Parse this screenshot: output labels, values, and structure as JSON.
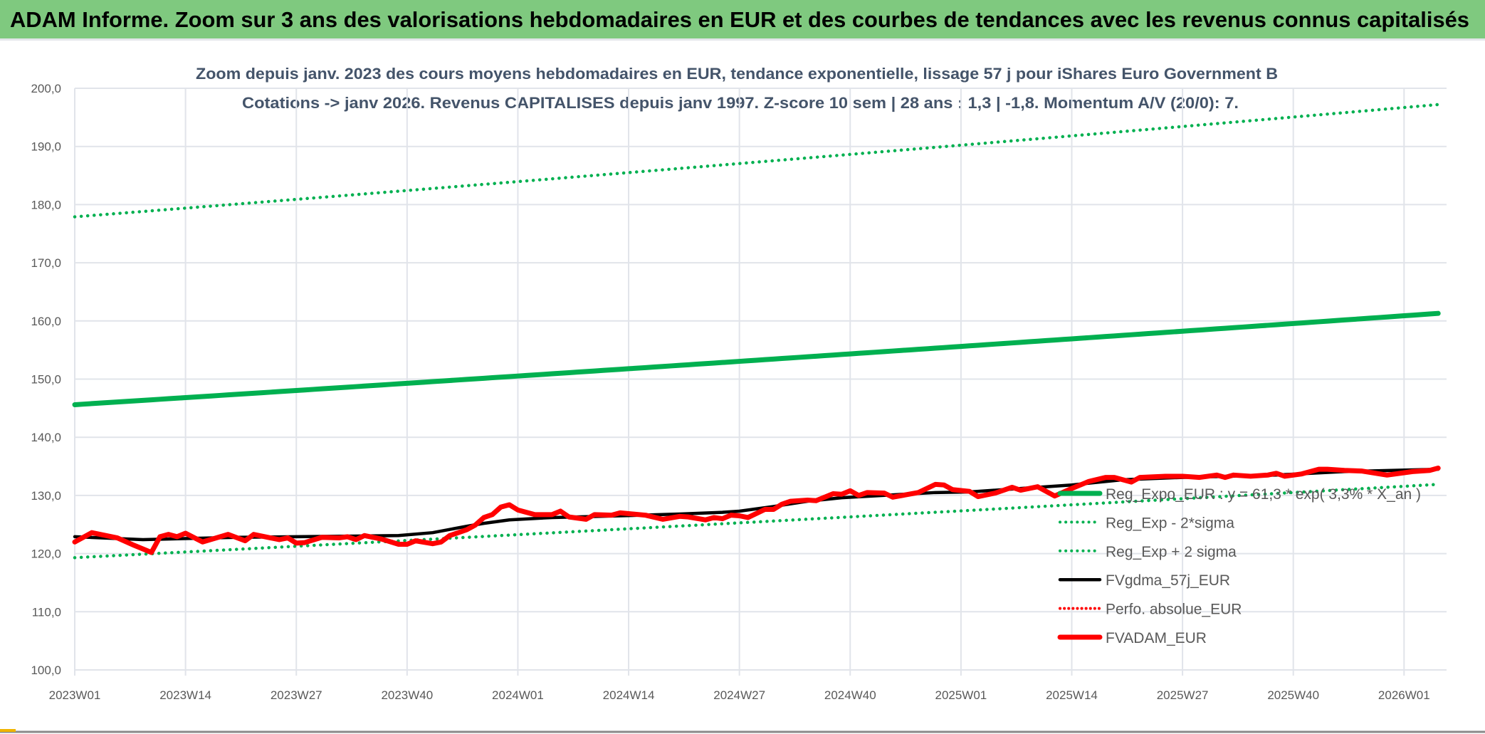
{
  "banner": {
    "title": "ADAM Informe. Zoom sur 3 ans des valorisations hebdomadaires en EUR et des courbes de tendances avec les revenus connus capitalisés"
  },
  "chart_data": {
    "type": "line",
    "title": "Zoom depuis janv. 2023 des cours moyens hebdomadaires en EUR, tendance exponentielle, lissage 57 j pour iShares Euro Government B",
    "subtitle": "Cotations -> janv 2026. Revenus CAPITALISES depuis janv 1997. Z-score 10 sem | 28 ans : 1,3 | -1,8. Momentum A/V (20/0): 7.",
    "xlabel": "",
    "ylabel": "",
    "ylim": [
      100,
      200
    ],
    "y_ticks": [
      "100,0",
      "110,0",
      "120,0",
      "130,0",
      "140,0",
      "150,0",
      "160,0",
      "170,0",
      "180,0",
      "190,0",
      "200,0"
    ],
    "x_ticks": [
      "2023W01",
      "2023W14",
      "2023W27",
      "2023W40",
      "2024W01",
      "2024W14",
      "2024W27",
      "2024W40",
      "2025W01",
      "2025W14",
      "2025W27",
      "2025W40",
      "2026W01"
    ],
    "grid": true,
    "legend_position": "bottom-right",
    "series": [
      {
        "name": "Reg_Expo_EUR : y = 61,3 * exp( 3,3% * X_an )",
        "color": "#00b050",
        "style": "solid-thick",
        "curve": "exponential",
        "points": [
          [
            "2023W01",
            145.6
          ],
          [
            "2026W05",
            161.3
          ]
        ]
      },
      {
        "name": "Reg_Exp - 2*sigma",
        "color": "#00b050",
        "style": "dotted",
        "curve": "exponential",
        "points": [
          [
            "2023W01",
            119.3
          ],
          [
            "2026W05",
            131.9
          ]
        ]
      },
      {
        "name": "Reg_Exp + 2 sigma",
        "color": "#00b050",
        "style": "dotted",
        "curve": "exponential",
        "points": [
          [
            "2023W01",
            177.9
          ],
          [
            "2026W05",
            197.2
          ]
        ]
      },
      {
        "name": "FVgdma_57j_EUR",
        "color": "#000000",
        "style": "solid",
        "points": [
          [
            "2023W01",
            122.9
          ],
          [
            "2023W09",
            122.4
          ],
          [
            "2023W20",
            122.8
          ],
          [
            "2023W39",
            123.1
          ],
          [
            "2023W43",
            123.6
          ],
          [
            "2023W47",
            124.7
          ],
          [
            "2023W49",
            125.2
          ],
          [
            "2023W52",
            125.8
          ],
          [
            "2024W05",
            126.2
          ],
          [
            "2024W13",
            126.5
          ],
          [
            "2024W20",
            126.8
          ],
          [
            "2024W25",
            127.1
          ],
          [
            "2024W27",
            127.3
          ],
          [
            "2024W31",
            128.1
          ],
          [
            "2024W35",
            129.0
          ],
          [
            "2024W39",
            129.6
          ],
          [
            "2024W45",
            130.1
          ],
          [
            "2024W50",
            130.5
          ],
          [
            "2025W02",
            130.6
          ],
          [
            "2025W14",
            131.8
          ],
          [
            "2025W20",
            132.7
          ],
          [
            "2025W27",
            133.1
          ],
          [
            "2025W38",
            133.5
          ],
          [
            "2025W46",
            134.1
          ],
          [
            "2026W05",
            134.5
          ]
        ]
      },
      {
        "name": "Perfo. absolue_EUR",
        "color": "#ff0000",
        "style": "dotted",
        "points": []
      },
      {
        "name": "FVADAM_EUR",
        "color": "#ff0000",
        "style": "solid-thick",
        "points": [
          [
            "2023W01",
            122.0
          ],
          [
            "2023W03",
            123.6
          ],
          [
            "2023W06",
            122.7
          ],
          [
            "2023W08",
            121.4
          ],
          [
            "2023W10",
            120.2
          ],
          [
            "2023W11",
            122.9
          ],
          [
            "2023W12",
            123.3
          ],
          [
            "2023W13",
            122.9
          ],
          [
            "2023W14",
            123.5
          ],
          [
            "2023W16",
            122.0
          ],
          [
            "2023W19",
            123.3
          ],
          [
            "2023W21",
            122.2
          ],
          [
            "2023W22",
            123.3
          ],
          [
            "2023W25",
            122.4
          ],
          [
            "2023W26",
            122.7
          ],
          [
            "2023W27",
            121.8
          ],
          [
            "2023W28",
            121.9
          ],
          [
            "2023W30",
            122.8
          ],
          [
            "2023W32",
            122.7
          ],
          [
            "2023W33",
            122.9
          ],
          [
            "2023W34",
            122.4
          ],
          [
            "2023W35",
            123.1
          ],
          [
            "2023W37",
            122.5
          ],
          [
            "2023W39",
            121.6
          ],
          [
            "2023W40",
            121.6
          ],
          [
            "2023W41",
            122.2
          ],
          [
            "2023W43",
            121.7
          ],
          [
            "2023W44",
            122.0
          ],
          [
            "2023W45",
            123.1
          ],
          [
            "2023W47",
            124.1
          ],
          [
            "2023W48",
            124.9
          ],
          [
            "2023W49",
            126.2
          ],
          [
            "2023W50",
            126.7
          ],
          [
            "2023W51",
            128.0
          ],
          [
            "2023W52",
            128.4
          ],
          [
            "2024W01",
            127.5
          ],
          [
            "2024W03",
            126.7
          ],
          [
            "2024W05",
            126.7
          ],
          [
            "2024W06",
            127.3
          ],
          [
            "2024W07",
            126.3
          ],
          [
            "2024W09",
            125.9
          ],
          [
            "2024W10",
            126.7
          ],
          [
            "2024W12",
            126.6
          ],
          [
            "2024W13",
            127.0
          ],
          [
            "2024W16",
            126.6
          ],
          [
            "2024W18",
            125.9
          ],
          [
            "2024W20",
            126.4
          ],
          [
            "2024W21",
            126.3
          ],
          [
            "2024W23",
            125.8
          ],
          [
            "2024W24",
            126.2
          ],
          [
            "2024W25",
            126.0
          ],
          [
            "2024W26",
            126.6
          ],
          [
            "2024W27",
            126.5
          ],
          [
            "2024W28",
            126.2
          ],
          [
            "2024W30",
            127.6
          ],
          [
            "2024W31",
            127.6
          ],
          [
            "2024W32",
            128.5
          ],
          [
            "2024W33",
            129.0
          ],
          [
            "2024W35",
            129.2
          ],
          [
            "2024W36",
            129.1
          ],
          [
            "2024W38",
            130.3
          ],
          [
            "2024W39",
            130.2
          ],
          [
            "2024W40",
            130.8
          ],
          [
            "2024W41",
            130.0
          ],
          [
            "2024W42",
            130.5
          ],
          [
            "2024W44",
            130.4
          ],
          [
            "2024W45",
            129.7
          ],
          [
            "2024W48",
            130.5
          ],
          [
            "2024W50",
            131.9
          ],
          [
            "2024W51",
            131.8
          ],
          [
            "2024W52",
            131.0
          ],
          [
            "2025W02",
            130.7
          ],
          [
            "2025W03",
            129.8
          ],
          [
            "2025W05",
            130.4
          ],
          [
            "2025W07",
            131.4
          ],
          [
            "2025W08",
            130.9
          ],
          [
            "2025W10",
            131.5
          ],
          [
            "2025W12",
            129.9
          ],
          [
            "2025W14",
            131.2
          ],
          [
            "2025W16",
            132.4
          ],
          [
            "2025W18",
            133.1
          ],
          [
            "2025W19",
            133.1
          ],
          [
            "2025W21",
            132.3
          ],
          [
            "2025W22",
            133.1
          ],
          [
            "2025W25",
            133.3
          ],
          [
            "2025W27",
            133.3
          ],
          [
            "2025W29",
            133.1
          ],
          [
            "2025W31",
            133.5
          ],
          [
            "2025W32",
            133.1
          ],
          [
            "2025W33",
            133.5
          ],
          [
            "2025W35",
            133.3
          ],
          [
            "2025W37",
            133.5
          ],
          [
            "2025W38",
            133.8
          ],
          [
            "2025W39",
            133.3
          ],
          [
            "2025W41",
            133.7
          ],
          [
            "2025W43",
            134.5
          ],
          [
            "2025W44",
            134.5
          ],
          [
            "2025W46",
            134.3
          ],
          [
            "2025W48",
            134.2
          ],
          [
            "2025W51",
            133.5
          ],
          [
            "2025W52",
            133.7
          ],
          [
            "2026W02",
            134.1
          ],
          [
            "2026W04",
            134.3
          ],
          [
            "2026W05",
            134.7
          ]
        ]
      }
    ]
  }
}
